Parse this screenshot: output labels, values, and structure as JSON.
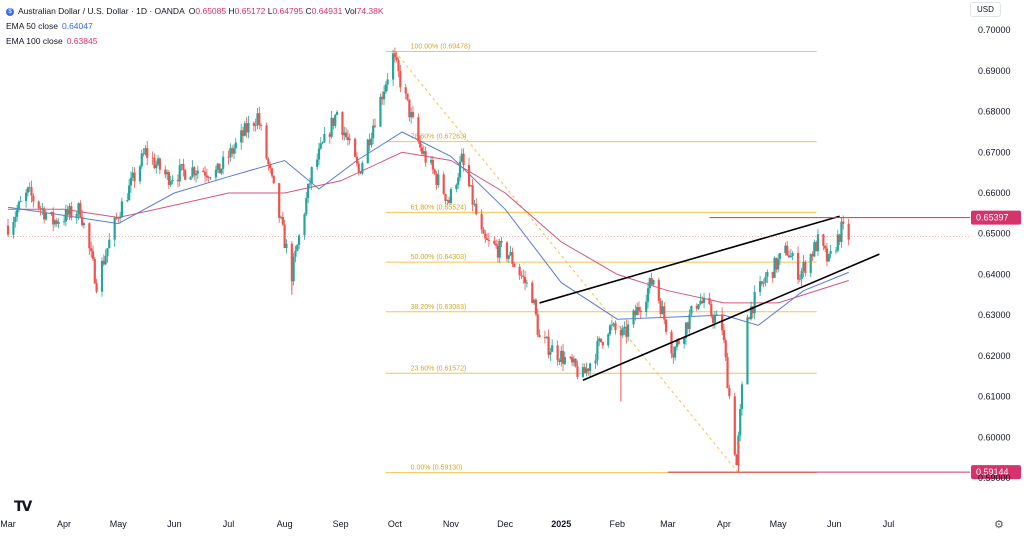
{
  "header": {
    "title": "Australian Dollar / U.S. Dollar · 1D · OANDA",
    "ohlc": [
      {
        "k": "O",
        "v": "0.65085"
      },
      {
        "k": "H",
        "v": "0.65172"
      },
      {
        "k": "L",
        "v": "0.64795"
      },
      {
        "k": "C",
        "v": "0.64931"
      },
      {
        "k": "Vol",
        "v": "74.38K"
      }
    ],
    "ema50_label": "EMA 50 close",
    "ema50_value": "0.64047",
    "ema100_label": "EMA 100 close",
    "ema100_value": "0.63845"
  },
  "currency_button": "USD",
  "colors": {
    "up": "#26a69a",
    "down": "#ef5350",
    "ema50": "#5b7bd6",
    "ema100": "#d3567f",
    "fib": "#f5c451",
    "price_tag": "#d6336c"
  },
  "icons": {
    "logo": "tradingview-logo",
    "settings": "gear-icon"
  },
  "chart_data": {
    "type": "candlestick",
    "ylim": [
      0.5895,
      0.703
    ],
    "ytick_labels": [
      "0.70000",
      "0.69000",
      "0.68000",
      "0.67000",
      "0.66000",
      "0.65000",
      "0.64000",
      "0.63000",
      "0.62000",
      "0.61000",
      "0.60000",
      "0.59000"
    ],
    "x_labels": [
      {
        "label": "Mar",
        "x": "2024-03-01"
      },
      {
        "label": "Apr",
        "x": "2024-04-01"
      },
      {
        "label": "May",
        "x": "2024-05-01"
      },
      {
        "label": "Jun",
        "x": "2024-06-01"
      },
      {
        "label": "Jul",
        "x": "2024-07-01"
      },
      {
        "label": "Aug",
        "x": "2024-08-01"
      },
      {
        "label": "Sep",
        "x": "2024-09-01"
      },
      {
        "label": "Oct",
        "x": "2024-10-01"
      },
      {
        "label": "Nov",
        "x": "2024-11-01"
      },
      {
        "label": "Dec",
        "x": "2024-12-01"
      },
      {
        "label": "2025",
        "x": "2025-01-01"
      },
      {
        "label": "Feb",
        "x": "2025-02-01"
      },
      {
        "label": "Mar",
        "x": "2025-03-01"
      },
      {
        "label": "Apr",
        "x": "2025-04-01"
      },
      {
        "label": "May",
        "x": "2025-05-01"
      },
      {
        "label": "Jun",
        "x": "2025-06-01"
      },
      {
        "label": "Jul",
        "x": "2025-07-01"
      }
    ],
    "x_range": [
      "2024-03-01",
      "2025-08-14"
    ],
    "price_path": [
      [
        "2024-03-01",
        0.652
      ],
      [
        "2024-03-12",
        0.66
      ],
      [
        "2024-03-26",
        0.653
      ],
      [
        "2024-04-10",
        0.656
      ],
      [
        "2024-04-19",
        0.638
      ],
      [
        "2024-05-01",
        0.655
      ],
      [
        "2024-05-16",
        0.67
      ],
      [
        "2024-05-28",
        0.664
      ],
      [
        "2024-06-12",
        0.666
      ],
      [
        "2024-06-25",
        0.665
      ],
      [
        "2024-07-10",
        0.675
      ],
      [
        "2024-07-17",
        0.679
      ],
      [
        "2024-08-05",
        0.64
      ],
      [
        "2024-08-16",
        0.665
      ],
      [
        "2024-08-30",
        0.68
      ],
      [
        "2024-09-11",
        0.665
      ],
      [
        "2024-09-30",
        0.6935
      ],
      [
        "2024-10-15",
        0.671
      ],
      [
        "2024-10-31",
        0.658
      ],
      [
        "2024-11-07",
        0.668
      ],
      [
        "2024-11-19",
        0.648
      ],
      [
        "2024-12-03",
        0.645
      ],
      [
        "2024-12-16",
        0.635
      ],
      [
        "2024-12-20",
        0.624
      ],
      [
        "2025-01-01",
        0.62
      ],
      [
        "2025-01-13",
        0.615
      ],
      [
        "2025-01-27",
        0.627
      ],
      [
        "2025-02-05",
        0.625
      ],
      [
        "2025-02-21",
        0.639
      ],
      [
        "2025-03-04",
        0.621
      ],
      [
        "2025-03-18",
        0.634
      ],
      [
        "2025-03-31",
        0.627
      ],
      [
        "2025-04-08",
        0.593
      ],
      [
        "2025-04-14",
        0.63
      ],
      [
        "2025-04-24",
        0.639
      ],
      [
        "2025-05-06",
        0.646
      ],
      [
        "2025-05-13",
        0.64
      ],
      [
        "2025-05-23",
        0.648
      ],
      [
        "2025-05-29",
        0.643
      ],
      [
        "2025-06-05",
        0.651
      ],
      [
        "2025-06-09",
        0.6493
      ]
    ],
    "wick_spikes": [
      {
        "x": "2024-08-05",
        "low": 0.635
      },
      {
        "x": "2024-04-19",
        "low": 0.6362
      },
      {
        "x": "2025-02-03",
        "low": 0.6088
      },
      {
        "x": "2025-04-09",
        "low": 0.5914
      }
    ],
    "ema50": [
      [
        "2024-03-01",
        0.6565
      ],
      [
        "2024-04-01",
        0.6545
      ],
      [
        "2024-05-01",
        0.6525
      ],
      [
        "2024-06-01",
        0.66
      ],
      [
        "2024-07-01",
        0.664
      ],
      [
        "2024-08-01",
        0.668
      ],
      [
        "2024-08-20",
        0.661
      ],
      [
        "2024-09-10",
        0.668
      ],
      [
        "2024-10-05",
        0.675
      ],
      [
        "2024-11-01",
        0.669
      ],
      [
        "2024-12-01",
        0.656
      ],
      [
        "2025-01-01",
        0.638
      ],
      [
        "2025-02-01",
        0.629
      ],
      [
        "2025-03-01",
        0.6295
      ],
      [
        "2025-04-01",
        0.63
      ],
      [
        "2025-04-20",
        0.6275
      ],
      [
        "2025-05-15",
        0.636
      ],
      [
        "2025-06-09",
        0.6405
      ]
    ],
    "ema100": [
      [
        "2024-03-01",
        0.656
      ],
      [
        "2024-04-01",
        0.656
      ],
      [
        "2024-05-01",
        0.654
      ],
      [
        "2024-06-01",
        0.657
      ],
      [
        "2024-07-01",
        0.66
      ],
      [
        "2024-08-01",
        0.66
      ],
      [
        "2024-09-01",
        0.663
      ],
      [
        "2024-10-05",
        0.67
      ],
      [
        "2024-11-01",
        0.668
      ],
      [
        "2024-12-01",
        0.66
      ],
      [
        "2025-01-01",
        0.648
      ],
      [
        "2025-02-01",
        0.64
      ],
      [
        "2025-03-01",
        0.636
      ],
      [
        "2025-04-01",
        0.633
      ],
      [
        "2025-05-01",
        0.633
      ],
      [
        "2025-06-09",
        0.6385
      ]
    ],
    "fibonacci": {
      "from": "2024-09-01",
      "to": "2025-06-30",
      "levels": [
        {
          "label": "100.00% (0.69478)",
          "price": 0.69478
        },
        {
          "label": "78.60% (0.67263)",
          "price": 0.67263
        },
        {
          "label": "61.80% (0.65524)",
          "price": 0.65524
        },
        {
          "label": "50.00% (0.64303)",
          "price": 0.64303
        },
        {
          "label": "38.20% (0.63083)",
          "price": 0.63083
        },
        {
          "label": "23.60% (0.61572)",
          "price": 0.61572
        },
        {
          "label": "0.00% (0.59130)",
          "price": 0.5913
        }
      ],
      "diagonal": [
        [
          "2024-10-01",
          0.69478
        ],
        [
          "2025-04-09",
          0.5913
        ]
      ]
    },
    "trendlines": [
      {
        "from": [
          "2024-12-20",
          0.633
        ],
        "to": [
          "2025-06-04",
          0.6543
        ]
      },
      {
        "from": [
          "2025-01-13",
          0.614
        ],
        "to": [
          "2025-06-26",
          0.645
        ]
      }
    ],
    "horizontal_marks": [
      {
        "price": 0.65397,
        "from": "2025-03-24",
        "label": "0.65397"
      },
      {
        "price": 0.59144,
        "from": "2025-03-01",
        "label": "0.59144"
      }
    ],
    "last_price": 0.64931
  }
}
